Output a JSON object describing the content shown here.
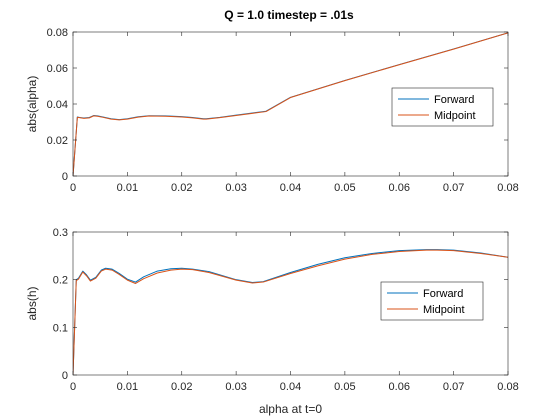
{
  "title": "Q = 1.0 timestep = .01s",
  "chart_data": [
    {
      "type": "line",
      "title": "Q = 1.0 timestep = .01s",
      "xlabel": "",
      "ylabel": "abs(alpha)",
      "xlim": [
        0,
        0.08
      ],
      "ylim": [
        0,
        0.08
      ],
      "xticks": [
        0,
        0.01,
        0.02,
        0.03,
        0.04,
        0.05,
        0.06,
        0.07,
        0.08
      ],
      "xtick_labels": [
        "0",
        "0.01",
        "0.02",
        "0.03",
        "0.04",
        "0.05",
        "0.06",
        "0.07",
        "0.08"
      ],
      "yticks": [
        0,
        0.02,
        0.04,
        0.06,
        0.08
      ],
      "ytick_labels": [
        "0",
        "0.02",
        "0.04",
        "0.06",
        "0.08"
      ],
      "legend_position": "right",
      "series": [
        {
          "name": "Forward",
          "color": "#0072BD",
          "x": [
            0,
            0.0008,
            0.0012,
            0.002,
            0.003,
            0.0038,
            0.0045,
            0.0055,
            0.007,
            0.0085,
            0.01,
            0.012,
            0.014,
            0.017,
            0.02,
            0.022,
            0.024,
            0.0245,
            0.027,
            0.03,
            0.033,
            0.0355,
            0.04,
            0.05,
            0.06,
            0.07,
            0.08
          ],
          "y": [
            0,
            0.0328,
            0.0325,
            0.0322,
            0.0325,
            0.0336,
            0.0334,
            0.0328,
            0.0318,
            0.0313,
            0.0318,
            0.0329,
            0.0335,
            0.0334,
            0.033,
            0.0325,
            0.0318,
            0.0318,
            0.0326,
            0.0338,
            0.035,
            0.036,
            0.0437,
            0.0531,
            0.0619,
            0.0706,
            0.0795
          ]
        },
        {
          "name": "Midpoint",
          "color": "#D95319",
          "x": [
            0,
            0.0008,
            0.0012,
            0.002,
            0.003,
            0.0038,
            0.0045,
            0.0055,
            0.007,
            0.0085,
            0.01,
            0.012,
            0.014,
            0.017,
            0.02,
            0.022,
            0.024,
            0.0245,
            0.027,
            0.03,
            0.033,
            0.0355,
            0.04,
            0.05,
            0.06,
            0.07,
            0.08
          ],
          "y": [
            0,
            0.0326,
            0.0324,
            0.032,
            0.0323,
            0.0334,
            0.0332,
            0.0326,
            0.0316,
            0.0312,
            0.0316,
            0.0327,
            0.0333,
            0.0332,
            0.0328,
            0.0323,
            0.0316,
            0.0316,
            0.0324,
            0.0336,
            0.0348,
            0.0358,
            0.0436,
            0.053,
            0.0618,
            0.0705,
            0.0795
          ]
        }
      ]
    },
    {
      "type": "line",
      "title": "",
      "xlabel": "alpha at t=0",
      "ylabel": "abs(h)",
      "xlim": [
        0,
        0.08
      ],
      "ylim": [
        0,
        0.3
      ],
      "xticks": [
        0,
        0.01,
        0.02,
        0.03,
        0.04,
        0.05,
        0.06,
        0.07,
        0.08
      ],
      "xtick_labels": [
        "0",
        "0.01",
        "0.02",
        "0.03",
        "0.04",
        "0.05",
        "0.06",
        "0.07",
        "0.08"
      ],
      "yticks": [
        0,
        0.1,
        0.2,
        0.3
      ],
      "ytick_labels": [
        "0",
        "0.1",
        "0.2",
        "0.3"
      ],
      "legend_position": "right",
      "series": [
        {
          "name": "Forward",
          "color": "#0072BD",
          "x": [
            0,
            0.0006,
            0.001,
            0.0018,
            0.0025,
            0.0032,
            0.0042,
            0.0052,
            0.006,
            0.0072,
            0.0085,
            0.01,
            0.0115,
            0.013,
            0.0155,
            0.018,
            0.02,
            0.022,
            0.025,
            0.03,
            0.033,
            0.035,
            0.04,
            0.045,
            0.05,
            0.055,
            0.06,
            0.065,
            0.067,
            0.07,
            0.075,
            0.08
          ],
          "y": [
            0,
            0.2,
            0.203,
            0.218,
            0.21,
            0.199,
            0.205,
            0.22,
            0.224,
            0.222,
            0.213,
            0.201,
            0.195,
            0.206,
            0.218,
            0.223,
            0.224,
            0.222,
            0.217,
            0.2,
            0.194,
            0.196,
            0.215,
            0.232,
            0.246,
            0.255,
            0.261,
            0.263,
            0.263,
            0.262,
            0.256,
            0.247
          ]
        },
        {
          "name": "Midpoint",
          "color": "#D95319",
          "x": [
            0,
            0.0006,
            0.001,
            0.0018,
            0.0025,
            0.0032,
            0.0042,
            0.0052,
            0.006,
            0.0072,
            0.0085,
            0.01,
            0.0115,
            0.013,
            0.0155,
            0.018,
            0.02,
            0.022,
            0.025,
            0.03,
            0.033,
            0.035,
            0.04,
            0.045,
            0.05,
            0.055,
            0.06,
            0.065,
            0.067,
            0.07,
            0.075,
            0.08
          ],
          "y": [
            0,
            0.198,
            0.201,
            0.216,
            0.208,
            0.197,
            0.203,
            0.218,
            0.222,
            0.22,
            0.211,
            0.199,
            0.192,
            0.202,
            0.214,
            0.22,
            0.222,
            0.221,
            0.215,
            0.199,
            0.193,
            0.195,
            0.213,
            0.229,
            0.243,
            0.253,
            0.259,
            0.262,
            0.262,
            0.261,
            0.255,
            0.247
          ]
        }
      ]
    }
  ]
}
